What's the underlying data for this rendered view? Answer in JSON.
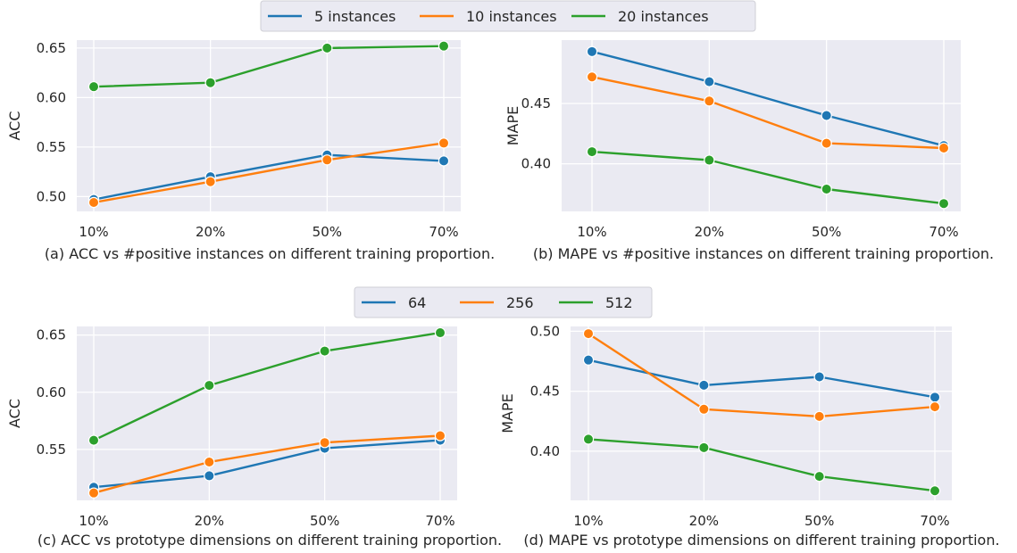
{
  "colors": {
    "blue": "#1f77b4",
    "orange": "#ff7f0e",
    "green": "#2ca02c",
    "plot_bg": "#eaeaf2",
    "grid": "#ffffff"
  },
  "legends": [
    {
      "items": [
        {
          "label": "5 instances",
          "color": "#1f77b4"
        },
        {
          "label": "10 instances",
          "color": "#ff7f0e"
        },
        {
          "label": "20 instances",
          "color": "#2ca02c"
        }
      ]
    },
    {
      "items": [
        {
          "label": "64",
          "color": "#1f77b4"
        },
        {
          "label": "256",
          "color": "#ff7f0e"
        },
        {
          "label": "512",
          "color": "#2ca02c"
        }
      ]
    }
  ],
  "chart_data": [
    {
      "type": "line",
      "caption": "(a) ACC vs #positive instances on different training proportion.",
      "ylabel": "ACC",
      "categories": [
        "10%",
        "20%",
        "50%",
        "70%"
      ],
      "ylim": [
        0.485,
        0.658
      ],
      "yticks": [
        "0.50",
        "0.55",
        "0.60",
        "0.65"
      ],
      "series": [
        {
          "name": "5 instances",
          "color": "#1f77b4",
          "values": [
            0.497,
            0.52,
            0.542,
            0.536
          ]
        },
        {
          "name": "10 instances",
          "color": "#ff7f0e",
          "values": [
            0.494,
            0.515,
            0.537,
            0.554
          ]
        },
        {
          "name": "20 instances",
          "color": "#2ca02c",
          "values": [
            0.611,
            0.615,
            0.65,
            0.652
          ]
        }
      ]
    },
    {
      "type": "line",
      "caption": "(b) MAPE vs #positive instances on different training proportion.",
      "ylabel": "MAPE",
      "categories": [
        "10%",
        "20%",
        "50%",
        "70%"
      ],
      "ylim": [
        0.3605,
        0.5025
      ],
      "yticks": [
        "0.40",
        "0.45"
      ],
      "series": [
        {
          "name": "5 instances",
          "color": "#1f77b4",
          "values": [
            0.493,
            0.468,
            0.44,
            0.415
          ]
        },
        {
          "name": "10 instances",
          "color": "#ff7f0e",
          "values": [
            0.472,
            0.452,
            0.417,
            0.413
          ]
        },
        {
          "name": "20 instances",
          "color": "#2ca02c",
          "values": [
            0.41,
            0.403,
            0.379,
            0.367
          ]
        }
      ]
    },
    {
      "type": "line",
      "caption": "(c) ACC vs prototype dimensions on different training proportion.",
      "ylabel": "ACC",
      "categories": [
        "10%",
        "20%",
        "50%",
        "70%"
      ],
      "ylim": [
        0.5055,
        0.6575
      ],
      "yticks": [
        "0.55",
        "0.60",
        "0.65"
      ],
      "series": [
        {
          "name": "64",
          "color": "#1f77b4",
          "values": [
            0.517,
            0.527,
            0.551,
            0.558
          ]
        },
        {
          "name": "256",
          "color": "#ff7f0e",
          "values": [
            0.512,
            0.539,
            0.556,
            0.562
          ]
        },
        {
          "name": "512",
          "color": "#2ca02c",
          "values": [
            0.558,
            0.606,
            0.636,
            0.652
          ]
        }
      ]
    },
    {
      "type": "line",
      "caption": "(d) MAPE vs prototype dimensions on different training proportion.",
      "ylabel": "MAPE",
      "categories": [
        "10%",
        "20%",
        "50%",
        "70%"
      ],
      "ylim": [
        0.359,
        0.504
      ],
      "yticks": [
        "0.40",
        "0.45",
        "0.50"
      ],
      "series": [
        {
          "name": "64",
          "color": "#1f77b4",
          "values": [
            0.476,
            0.455,
            0.462,
            0.445
          ]
        },
        {
          "name": "256",
          "color": "#ff7f0e",
          "values": [
            0.498,
            0.435,
            0.429,
            0.437
          ]
        },
        {
          "name": "512",
          "color": "#2ca02c",
          "values": [
            0.41,
            0.403,
            0.379,
            0.367
          ]
        }
      ]
    }
  ]
}
